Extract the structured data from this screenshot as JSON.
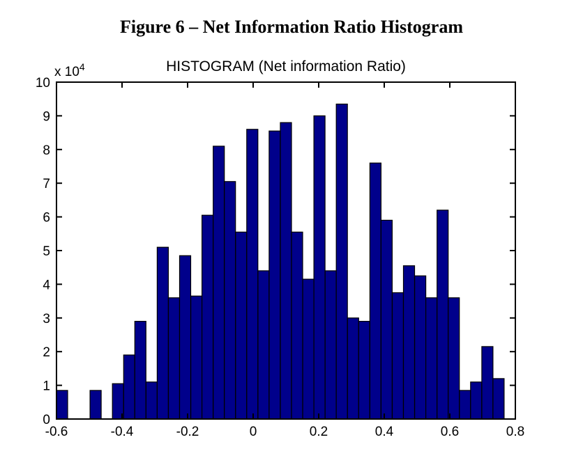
{
  "page": {
    "background": "#ffffff",
    "text_color": "#000000"
  },
  "figure_title": "Figure 6 – Net Information Ratio Histogram",
  "chart_data": {
    "type": "bar",
    "subtype": "histogram",
    "title": "HISTOGRAM (Net information Ratio)",
    "xlabel": "",
    "ylabel": "",
    "y_offset": {
      "mantissa": "x 10",
      "exponent": "4"
    },
    "xlim": [
      -0.6,
      0.8
    ],
    "ylim": [
      0,
      10
    ],
    "grid": false,
    "legend": null,
    "bin_start": -0.6,
    "bin_count": 41,
    "values_scale": 10000,
    "values": [
      0.85,
      0,
      0,
      0.85,
      0,
      1.05,
      1.9,
      2.9,
      1.1,
      5.1,
      3.6,
      4.85,
      3.65,
      6.05,
      8.1,
      7.05,
      5.55,
      8.6,
      4.4,
      8.55,
      8.8,
      5.55,
      4.15,
      9.0,
      4.4,
      9.35,
      3.0,
      2.9,
      7.6,
      5.9,
      3.75,
      4.55,
      4.25,
      3.6,
      6.2,
      3.6,
      0.85,
      1.1,
      2.15,
      1.2,
      0
    ],
    "xticks": [
      -0.6,
      -0.4,
      -0.2,
      0,
      0.2,
      0.4,
      0.6,
      0.8
    ],
    "xtick_labels": [
      "-0.6",
      "-0.4",
      "-0.2",
      "0",
      "0.2",
      "0.4",
      "0.6",
      "0.8"
    ],
    "yticks": [
      0,
      1,
      2,
      3,
      4,
      5,
      6,
      7,
      8,
      9,
      10
    ],
    "ytick_labels": [
      "0",
      "1",
      "2",
      "3",
      "4",
      "5",
      "6",
      "7",
      "8",
      "9",
      "10"
    ],
    "colors": {
      "bar_fill": "#00008B",
      "bar_edge": "#000000",
      "axis": "#000000",
      "text": "#000000"
    }
  }
}
